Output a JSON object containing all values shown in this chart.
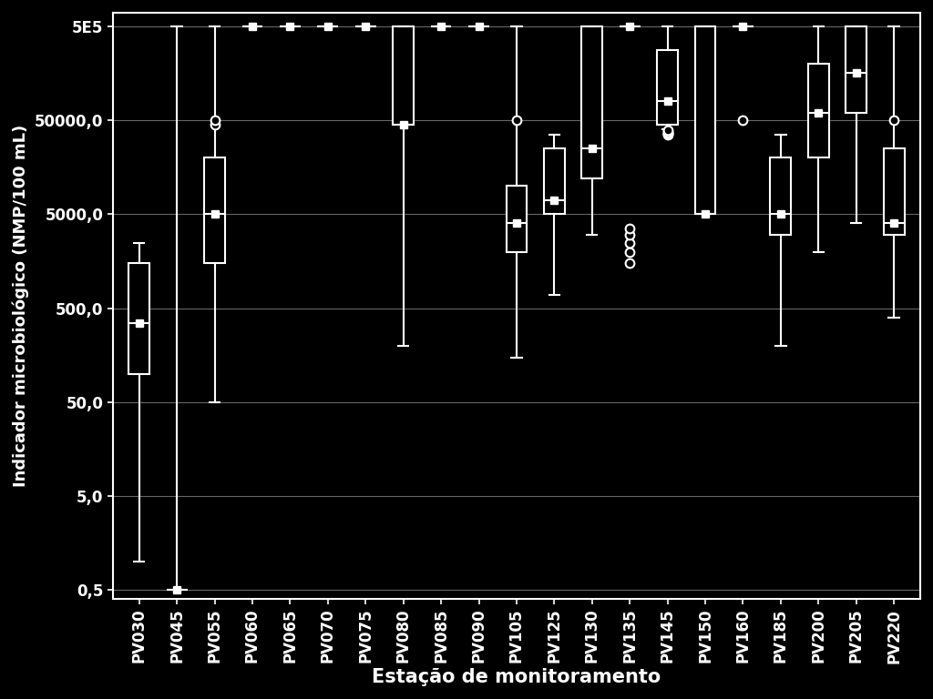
{
  "stations": [
    "PV030",
    "PV045",
    "PV055",
    "PV060",
    "PV065",
    "PV070",
    "PV075",
    "PV080",
    "PV085",
    "PV090",
    "PV105",
    "PV125",
    "PV130",
    "PV135",
    "PV145",
    "PV150",
    "PV160",
    "PV185",
    "PV200",
    "PV205",
    "PV220"
  ],
  "boxplot_data": {
    "PV030": {
      "whislo": 1.0,
      "q1": 100,
      "med": 350,
      "mean": 350,
      "q3": 1500,
      "whishi": 2500,
      "fliers": []
    },
    "PV045": {
      "whislo": 0.5,
      "q1": 0.5,
      "med": 0.5,
      "mean": 0.5,
      "q3": 0.5,
      "whishi": 500000,
      "fliers": []
    },
    "PV055": {
      "whislo": 50,
      "q1": 1500,
      "med": 5000,
      "mean": 5000,
      "q3": 20000,
      "whishi": 500000,
      "fliers": [
        45000,
        50000
      ]
    },
    "PV060": {
      "whislo": 500000,
      "q1": 500000,
      "med": 500000,
      "mean": 500000,
      "q3": 500000,
      "whishi": 500000,
      "fliers": []
    },
    "PV065": {
      "whislo": 500000,
      "q1": 500000,
      "med": 500000,
      "mean": 500000,
      "q3": 500000,
      "whishi": 500000,
      "fliers": []
    },
    "PV070": {
      "whislo": 500000,
      "q1": 500000,
      "med": 500000,
      "mean": 500000,
      "q3": 500000,
      "whishi": 500000,
      "fliers": []
    },
    "PV075": {
      "whislo": 500000,
      "q1": 500000,
      "med": 500000,
      "mean": 500000,
      "q3": 500000,
      "whishi": 500000,
      "fliers": []
    },
    "PV080": {
      "whislo": 200,
      "q1": 45000,
      "med": 45000,
      "mean": 45000,
      "q3": 500000,
      "whishi": 500000,
      "fliers": []
    },
    "PV085": {
      "whislo": 500000,
      "q1": 500000,
      "med": 500000,
      "mean": 500000,
      "q3": 500000,
      "whishi": 500000,
      "fliers": []
    },
    "PV090": {
      "whislo": 500000,
      "q1": 500000,
      "med": 500000,
      "mean": 500000,
      "q3": 500000,
      "whishi": 500000,
      "fliers": []
    },
    "PV105": {
      "whislo": 150,
      "q1": 2000,
      "med": 4000,
      "mean": 4000,
      "q3": 10000,
      "whishi": 500000,
      "fliers": [
        50000
      ]
    },
    "PV125": {
      "whislo": 700,
      "q1": 5000,
      "med": 7000,
      "mean": 7000,
      "q3": 25000,
      "whishi": 35000,
      "fliers": []
    },
    "PV130": {
      "whislo": 3000,
      "q1": 12000,
      "med": 25000,
      "mean": 25000,
      "q3": 500000,
      "whishi": 500000,
      "fliers": []
    },
    "PV135": {
      "whislo": 500000,
      "q1": 500000,
      "med": 500000,
      "mean": 500000,
      "q3": 500000,
      "whishi": 500000,
      "fliers": [
        1500,
        2000,
        2500,
        3000,
        3500
      ]
    },
    "PV145": {
      "whislo": 40000,
      "q1": 45000,
      "med": 80000,
      "mean": 80000,
      "q3": 280000,
      "whishi": 500000,
      "fliers": [
        35000,
        36000,
        37000,
        38000,
        39000
      ]
    },
    "PV150": {
      "whislo": 5000,
      "q1": 5000,
      "med": 5000,
      "mean": 5000,
      "q3": 500000,
      "whishi": 500000,
      "fliers": []
    },
    "PV160": {
      "whislo": 500000,
      "q1": 500000,
      "med": 500000,
      "mean": 500000,
      "q3": 500000,
      "whishi": 500000,
      "fliers": [
        50000
      ]
    },
    "PV185": {
      "whislo": 200,
      "q1": 3000,
      "med": 5000,
      "mean": 5000,
      "q3": 20000,
      "whishi": 35000,
      "fliers": []
    },
    "PV200": {
      "whislo": 2000,
      "q1": 20000,
      "med": 60000,
      "mean": 60000,
      "q3": 200000,
      "whishi": 500000,
      "fliers": []
    },
    "PV205": {
      "whislo": 4000,
      "q1": 60000,
      "med": 160000,
      "mean": 160000,
      "q3": 500000,
      "whishi": 500000,
      "fliers": []
    },
    "PV220": {
      "whislo": 400,
      "q1": 3000,
      "med": 4000,
      "mean": 4000,
      "q3": 25000,
      "whishi": 500000,
      "fliers": [
        50000
      ]
    }
  },
  "background_color": "#000000",
  "plot_bg_color": "#000000",
  "box_facecolor": "#000000",
  "box_edgecolor": "#ffffff",
  "median_color": "#ffffff",
  "mean_marker": "s",
  "mean_color": "#ffffff",
  "whisker_color": "#ffffff",
  "cap_color": "#ffffff",
  "flier_facecolor": "#000000",
  "flier_edgecolor": "#ffffff",
  "grid_color": "#666666",
  "text_color": "#ffffff",
  "ylabel": "Indicador microbiológico (NMP/100 mL)",
  "xlabel": "Estação de monitoramento",
  "yticks": [
    0.5,
    5.0,
    50.0,
    500.0,
    5000.0,
    50000.0,
    500000.0
  ],
  "ytick_labels": [
    "0,5",
    "5,0",
    "50,0",
    "500,0",
    "5000,0",
    "50000,0",
    "5E5"
  ],
  "ymin": 0.4,
  "ymax": 700000,
  "linewidth": 1.5,
  "box_width": 0.55,
  "xlabel_fontsize": 15,
  "ylabel_fontsize": 13,
  "tick_fontsize": 12
}
